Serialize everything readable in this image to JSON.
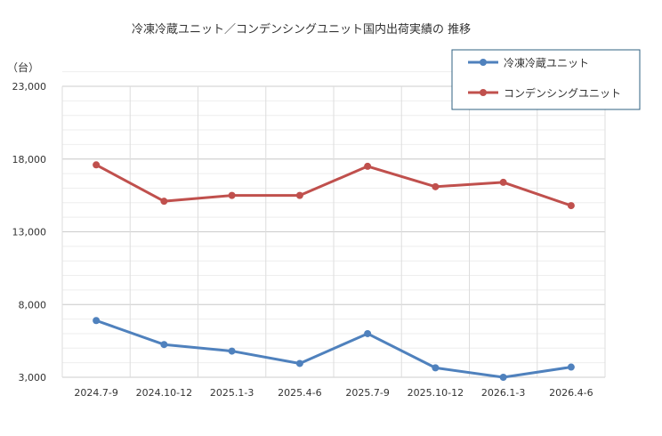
{
  "chart_data": {
    "type": "line",
    "title": "冷凍冷蔵ユニット／コンデンシングユニット国内出荷実績の 推移",
    "ylabel": "（台）",
    "xlabel": "",
    "categories": [
      "2024.7-9",
      "2024.10-12",
      "2025.1-3",
      "2025.4-6",
      "2025.7-9",
      "2025.10-12",
      "2026.1-3",
      "2026.4-6"
    ],
    "ylim": [
      3000,
      23000
    ],
    "yticks": [
      3000,
      8000,
      13000,
      18000,
      23000
    ],
    "ytick_labels": [
      "3,000",
      "8,000",
      "13,000",
      "18,000",
      "23,000"
    ],
    "grid": true,
    "legend_position": "top-right",
    "series": [
      {
        "name": "冷凍冷蔵ユニット",
        "color": "#4f81bd",
        "values": [
          6900,
          5250,
          4800,
          3950,
          6000,
          3650,
          3000,
          3700
        ]
      },
      {
        "name": "コンデンシングユニット",
        "color": "#c0504d",
        "values": [
          17600,
          15100,
          15500,
          15500,
          17500,
          16100,
          16400,
          14800
        ]
      }
    ]
  }
}
